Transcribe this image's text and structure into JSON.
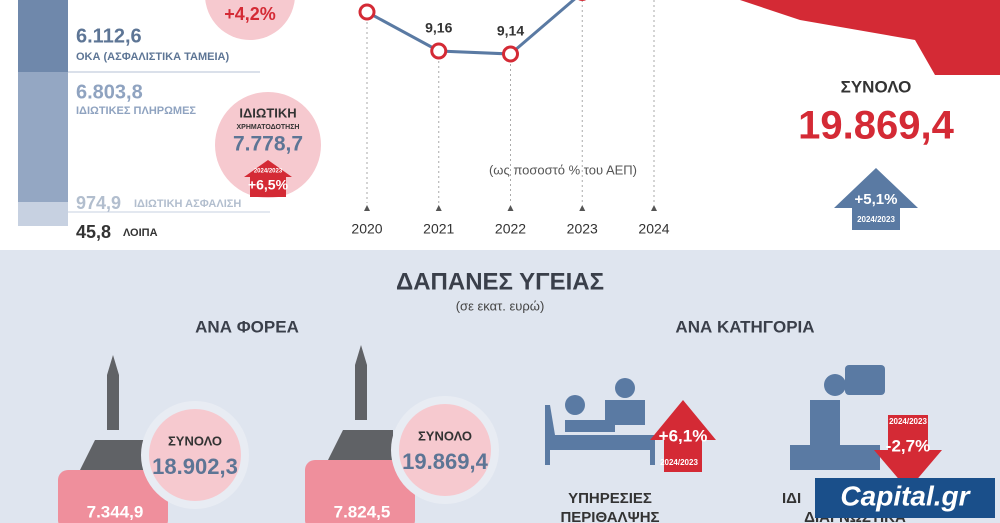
{
  "left_panel": {
    "oka_value": "6.112,6",
    "oka_label": "ΟΚΑ (ΑΣΦΑΛΙΣΤΙΚΑ ΤΑΜΕΙΑ)",
    "private_value": "6.803,8",
    "private_label": "ΙΔΙΩΤΙΚΕΣ ΠΛΗΡΩΜΕΣ",
    "insurance_value": "974,9",
    "insurance_label": "ΙΔΙΩΤΙΚΗ ΑΣΦΑΛΙΣΗ",
    "other_value": "45,8",
    "other_label": "ΛΟΙΠΑ"
  },
  "public_change": "+4,2%",
  "private_financing": {
    "title": "ΙΔΙΩΤΙΚΗ",
    "subtitle": "ΧΡΗΜΑΤΟΔΟΤΗΣΗ",
    "value": "7.778,7",
    "period": "2024/2023",
    "change": "+6,5%"
  },
  "chart_data": {
    "type": "line",
    "x": [
      "2020",
      "2021",
      "2022",
      "2023",
      "2024"
    ],
    "values": [
      9.42,
      9.16,
      9.14,
      9.55,
      null
    ],
    "value_labels": [
      null,
      "9,16",
      "9,14",
      null,
      null
    ],
    "ylim": [
      8.2,
      9.5
    ],
    "color": "#5a7aa3",
    "marker_color": "#d42a35",
    "caption": "(ως ποσοστό % του ΑΕΠ)"
  },
  "total": {
    "label": "ΣΥΝΟΛΟ",
    "value": "19.869,4",
    "change": "+5,1%",
    "period": "2024/2023"
  },
  "bottom": {
    "title": "ΔΑΠΑΝΕΣ ΥΓΕΙΑΣ",
    "subtitle": "(σε εκατ. ευρώ)",
    "by_body": {
      "heading": "ΑΝΑ ΦΟΡΕΑ",
      "items": [
        {
          "total_label": "ΣΥΝΟΛΟ",
          "total": "18.902,3",
          "value": "7.344,9"
        },
        {
          "total_label": "ΣΥΝΟΛΟ",
          "total": "19.869,4",
          "value": "7.824,5"
        }
      ]
    },
    "by_category": {
      "heading": "ΑΝΑ ΚΑΤΗΓΟΡΙΑ",
      "items": [
        {
          "change": "+6,1%",
          "period": "2024/2023",
          "label_lines": [
            "ΥΠΗΡΕΣΙΕΣ",
            "ΠΕΡΙΘΑΛΨΗΣ"
          ]
        },
        {
          "change": "-2,7%",
          "period": "2024/2023",
          "label_lines": [
            "ΙΔΙ",
            "ΔΙΑΓΝΩΣΤΙΚΑ"
          ]
        }
      ]
    }
  },
  "logo": "Capital.gr"
}
